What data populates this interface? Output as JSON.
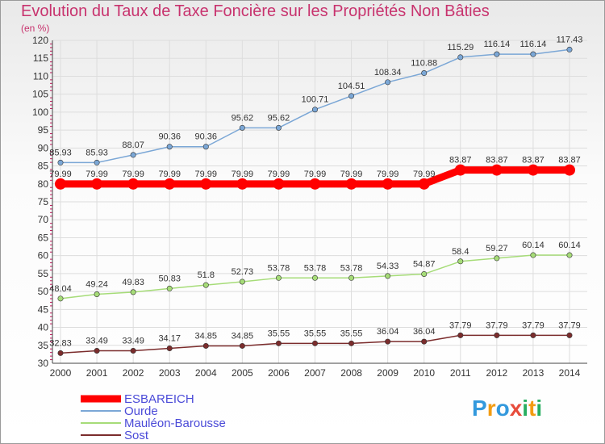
{
  "chart_data": {
    "type": "line",
    "title": "Evolution du Taux de Taxe Foncière sur les Propriétés Non Bâties",
    "subtitle": "(en %)",
    "xlabel": "",
    "ylabel": "",
    "ylim": [
      30,
      120
    ],
    "yticks": [
      30,
      35,
      40,
      45,
      50,
      55,
      60,
      65,
      70,
      75,
      80,
      85,
      90,
      95,
      100,
      105,
      110,
      115,
      120
    ],
    "x": [
      "2000",
      "2001",
      "2002",
      "2003",
      "2004",
      "2005",
      "2006",
      "2007",
      "2008",
      "2009",
      "2010",
      "2011",
      "2012",
      "2013",
      "2014"
    ],
    "series": [
      {
        "name": "ESBAREICH",
        "color": "#ff0000",
        "values": [
          79.99,
          79.99,
          79.99,
          79.99,
          79.99,
          79.99,
          79.99,
          79.99,
          79.99,
          79.99,
          79.99,
          83.87,
          83.87,
          83.87,
          83.87
        ],
        "labels": [
          "79.99",
          "79.99",
          "79.99",
          "79.99",
          "79.99",
          "79.99",
          "79.99",
          "79.99",
          "79.99",
          "79.99",
          "79.99",
          "83.87",
          "83.87",
          "83.87",
          "83.87"
        ]
      },
      {
        "name": "Ourde",
        "color": "#7ba7d6",
        "values": [
          85.93,
          85.93,
          88.07,
          90.36,
          90.36,
          95.62,
          95.62,
          100.71,
          104.51,
          108.34,
          110.88,
          115.29,
          116.14,
          116.14,
          117.43
        ],
        "labels": [
          "85.93",
          "85.93",
          "88.07",
          "90.36",
          "90.36",
          "95.62",
          "95.62",
          "100.71",
          "104.51",
          "108.34",
          "110.88",
          "115.29",
          "116.14",
          "116.14",
          "117.43"
        ]
      },
      {
        "name": "Mauléon-Barousse",
        "color": "#a6dc78",
        "values": [
          48.04,
          49.24,
          49.83,
          50.83,
          51.8,
          52.73,
          53.78,
          53.78,
          53.78,
          54.33,
          54.87,
          58.4,
          59.27,
          60.14,
          60.14
        ],
        "labels": [
          "48.04",
          "49.24",
          "49.83",
          "50.83",
          "51.8",
          "52.73",
          "53.78",
          "53.78",
          "53.78",
          "54.33",
          "54.87",
          "58.4",
          "59.27",
          "60.14",
          "60.14"
        ]
      },
      {
        "name": "Sost",
        "color": "#7b2c2c",
        "values": [
          32.83,
          33.49,
          33.49,
          34.17,
          34.85,
          34.85,
          35.55,
          35.55,
          35.55,
          36.04,
          36.04,
          37.79,
          37.79,
          37.79,
          37.79
        ],
        "labels": [
          "32.83",
          "33.49",
          "33.49",
          "34.17",
          "34.85",
          "34.85",
          "35.55",
          "35.55",
          "35.55",
          "36.04",
          "36.04",
          "37.79",
          "37.79",
          "37.79",
          "37.79"
        ]
      }
    ],
    "legend": "bottom-left"
  },
  "logo": {
    "letters": [
      "P",
      "r",
      "o",
      "x",
      "i",
      "t",
      "i"
    ],
    "colors": [
      "#3399dd",
      "#f39c12",
      "#3399dd",
      "#e74c3c",
      "#27ae60",
      "#f39c12",
      "#27ae60"
    ]
  }
}
